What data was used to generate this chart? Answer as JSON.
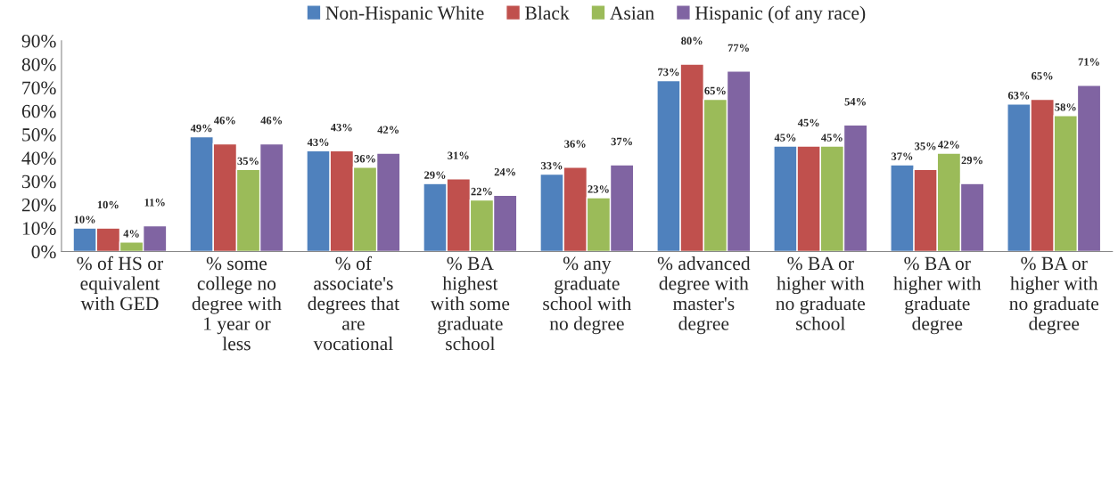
{
  "chart_data": {
    "type": "bar",
    "categories": [
      "% of HS or\nequivalent\nwith GED",
      "% some\ncollege no\ndegree with\n1 year or\nless",
      "% of\nassociate's\ndegrees that\nare\nvocational",
      "% BA\nhighest\nwith some\ngraduate\nschool",
      "% any\ngraduate\nschool with\nno degree",
      "% advanced\ndegree with\nmaster's\ndegree",
      "% BA or\nhigher with\nno graduate\nschool",
      "% BA or\nhigher with\ngraduate\ndegree",
      "% BA or\nhigher with\nno graduate\ndegree"
    ],
    "series": [
      {
        "name": "Non-Hispanic White",
        "color": "#4f81bd",
        "values": [
          10,
          49,
          43,
          29,
          33,
          73,
          45,
          37,
          63
        ],
        "value_labels": [
          "10%",
          "49%",
          "43%",
          "29%",
          "33%",
          "73%",
          "45%",
          "37%",
          "63%"
        ]
      },
      {
        "name": "Black",
        "color": "#c0504d",
        "values": [
          10,
          46,
          43,
          31,
          36,
          80,
          45,
          35,
          65
        ],
        "value_labels": [
          "10%",
          "46%",
          "43%",
          "31%",
          "36%",
          "80%",
          "45%",
          "35%",
          "65%"
        ]
      },
      {
        "name": "Asian",
        "color": "#9bbb59",
        "values": [
          4,
          35,
          36,
          22,
          23,
          65,
          45,
          42,
          58
        ],
        "value_labels": [
          "4%",
          "35%",
          "36%",
          "22%",
          "23%",
          "65%",
          "45%",
          "42%",
          "58%"
        ]
      },
      {
        "name": "Hispanic (of any race)",
        "color": "#8064a2",
        "values": [
          11,
          46,
          42,
          24,
          37,
          77,
          54,
          29,
          71
        ],
        "value_labels": [
          "11%",
          "46%",
          "42%",
          "24%",
          "37%",
          "77%",
          "54%",
          "29%",
          "71%"
        ]
      }
    ],
    "ylim": [
      0,
      90
    ],
    "yticks": [
      {
        "value": 0,
        "label": "0%"
      },
      {
        "value": 10,
        "label": "10%"
      },
      {
        "value": 20,
        "label": "20%"
      },
      {
        "value": 30,
        "label": "30%"
      },
      {
        "value": 40,
        "label": "40%"
      },
      {
        "value": 50,
        "label": "50%"
      },
      {
        "value": 60,
        "label": "60%"
      },
      {
        "value": 70,
        "label": "70%"
      },
      {
        "value": 80,
        "label": "80%"
      },
      {
        "value": 90,
        "label": "90%"
      }
    ],
    "legend": "top",
    "grid": false
  }
}
